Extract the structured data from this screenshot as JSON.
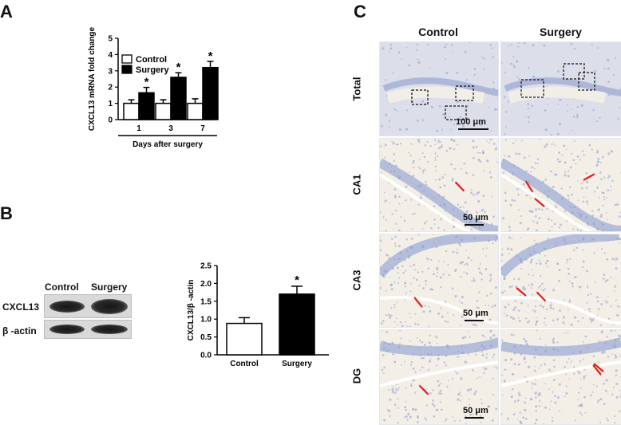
{
  "panels": {
    "a": "A",
    "b": "B",
    "c": "C"
  },
  "colors": {
    "control_fill": "#ffffff",
    "surgery_fill": "#000000",
    "arrow": "#e0201b",
    "tissue_bg": "#f3efe6",
    "stain": "#8a9bd1"
  },
  "chart_data": [
    {
      "type": "bar",
      "panel": "A",
      "categories": [
        "1",
        "3",
        "7"
      ],
      "series": [
        {
          "name": "Control",
          "values": [
            1.0,
            1.0,
            1.0
          ],
          "errors": [
            0.22,
            0.22,
            0.28
          ]
        },
        {
          "name": "Surgery",
          "values": [
            1.65,
            2.6,
            3.2
          ],
          "errors": [
            0.33,
            0.28,
            0.38
          ]
        }
      ],
      "ylim": [
        0,
        5
      ],
      "yticks": [
        "0",
        "1",
        "2",
        "3",
        "4",
        "5"
      ],
      "ylabel": "CXCL13 mRNA fold change",
      "xlabel": "Days after surgery",
      "significance": [
        "*",
        "*",
        "*"
      ],
      "legend_position": "top-left"
    },
    {
      "type": "bar",
      "panel": "B",
      "categories": [
        "Control",
        "Surgery"
      ],
      "values": [
        0.88,
        1.7
      ],
      "errors": [
        0.16,
        0.22
      ],
      "ylim": [
        0,
        2.5
      ],
      "yticks": [
        "0.0",
        "0.5",
        "1.0",
        "1.5",
        "2.0",
        "2.5"
      ],
      "ylabel": "CXCL13/β -actin",
      "significance": [
        "",
        "*"
      ]
    }
  ],
  "blot": {
    "lanes": [
      "Control",
      "Surgery"
    ],
    "rows": [
      "CXCL13",
      "β -actin"
    ]
  },
  "micrographs": {
    "columns": [
      "Control",
      "Surgery"
    ],
    "rows": [
      "Total",
      "CA1",
      "CA3",
      "DG"
    ],
    "scale_bars": [
      "100 μm",
      "50 μm",
      "50 μm",
      "50 μm"
    ]
  }
}
